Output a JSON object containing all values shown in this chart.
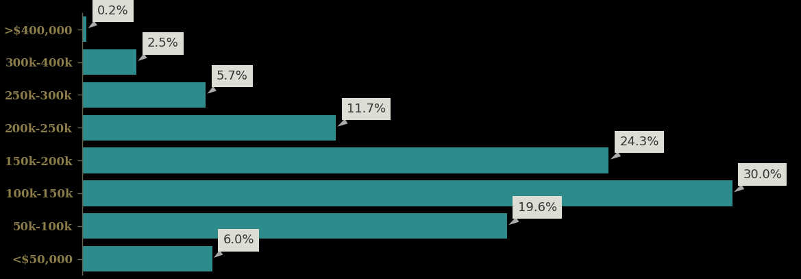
{
  "categories": [
    ">$400,000",
    "300k-400k",
    "250k-300k",
    "200k-250k",
    "150k-200k",
    "100k-150k",
    "50k-100k",
    "<$50,000"
  ],
  "values": [
    0.2,
    2.5,
    5.7,
    11.7,
    24.3,
    30.0,
    19.6,
    6.0
  ],
  "labels": [
    "0.2%",
    "2.5%",
    "5.7%",
    "11.7%",
    "24.3%",
    "30.0%",
    "19.6%",
    "6.0%"
  ],
  "bar_color": "#2e8b8b",
  "background_color": "#000000",
  "label_color": "#8b7d4a",
  "annotation_bg": "#ddddd5",
  "annotation_text_color": "#333333",
  "xlim": [
    0,
    33
  ],
  "bar_height": 0.78,
  "label_fontsize": 12,
  "annotation_fontsize": 13
}
